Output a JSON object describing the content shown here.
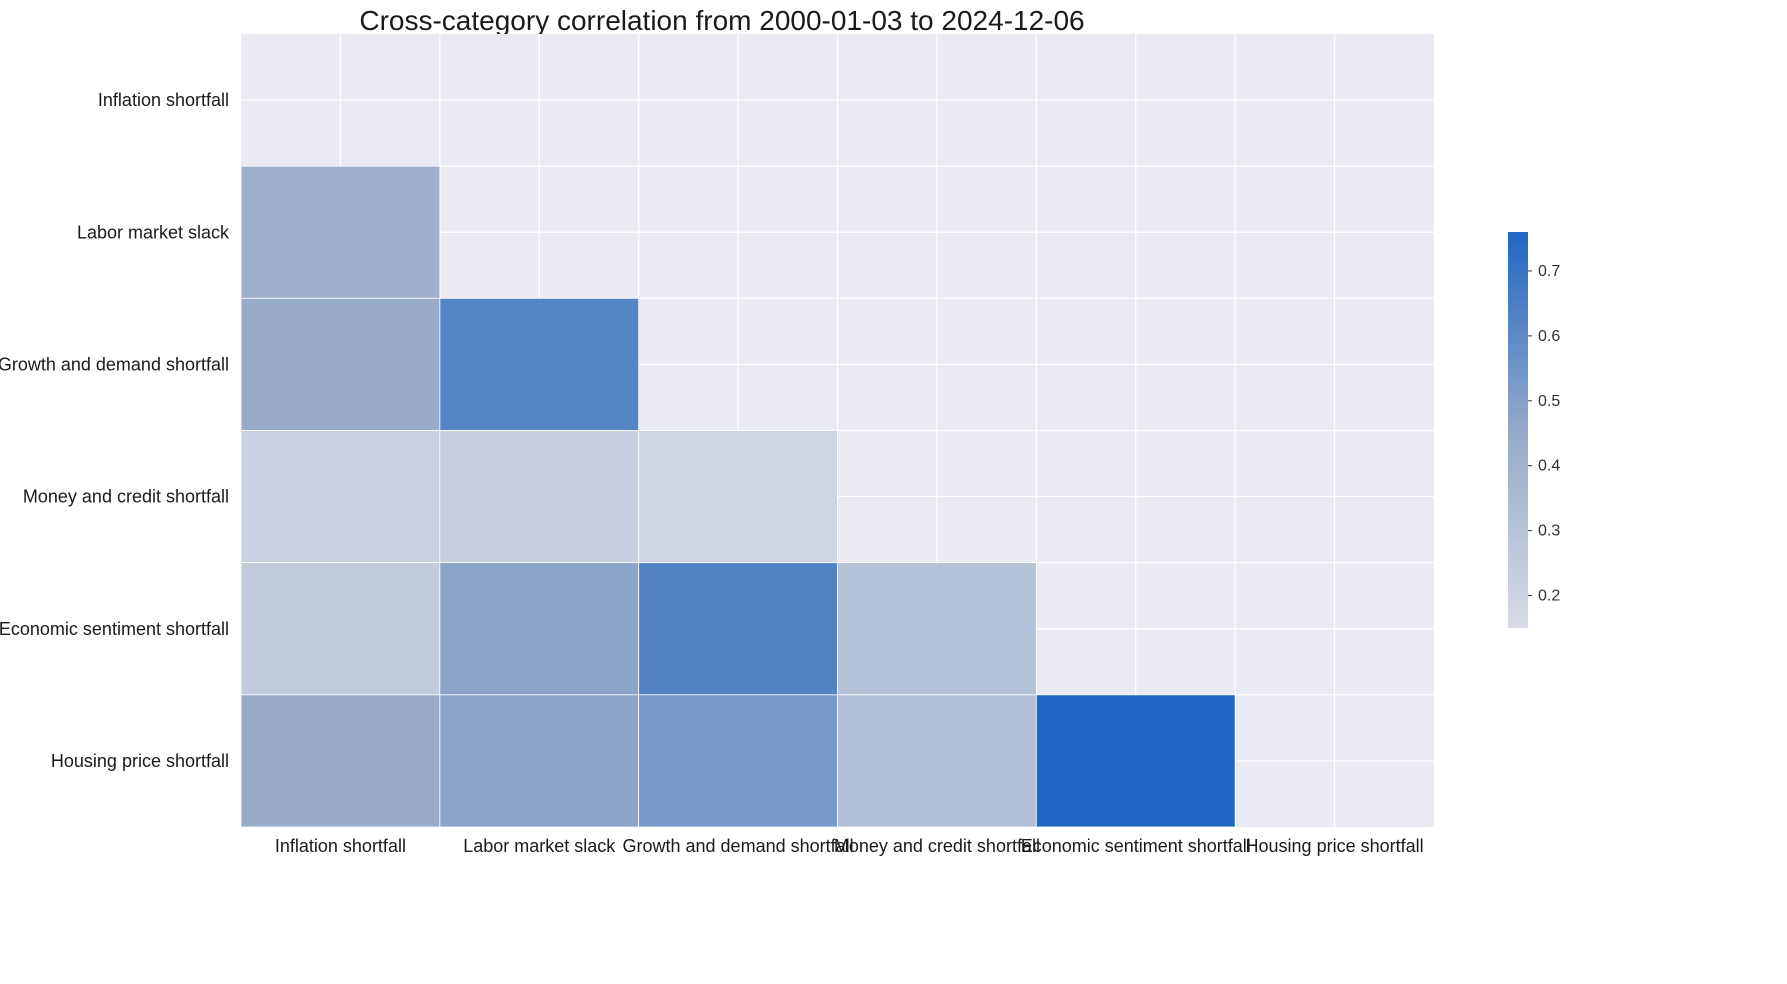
{
  "chart_data": {
    "type": "heatmap",
    "title": "Cross-category correlation from 2000-01-03 to 2024-12-06",
    "xlabel": "",
    "ylabel": "",
    "categories": [
      "Inflation shortfall",
      "Labor market slack",
      "Growth and demand shortfall",
      "Money and credit shortfall",
      "Economic sentiment shortfall",
      "Housing price shortfall"
    ],
    "mask": "upper triangle incl. diagonal",
    "grid": true,
    "values": [
      [
        null,
        null,
        null,
        null,
        null,
        null
      ],
      [
        0.42,
        null,
        null,
        null,
        null,
        null
      ],
      [
        0.44,
        0.62,
        null,
        null,
        null,
        null
      ],
      [
        0.22,
        0.23,
        0.19,
        null,
        null,
        null
      ],
      [
        0.25,
        0.48,
        0.63,
        0.31,
        null,
        null
      ],
      [
        0.44,
        0.48,
        0.53,
        0.32,
        0.76,
        null
      ]
    ],
    "colorbar": {
      "vmin": 0.15,
      "vmax": 0.76,
      "ticks": [
        "0.2",
        "0.3",
        "0.4",
        "0.5",
        "0.6",
        "0.7"
      ],
      "placement": "right"
    }
  },
  "colors": {
    "background": "#eaeaf2",
    "grid": "#ffffff",
    "low": "#d8dbe5",
    "mid": "#96a9ca",
    "high": "#1f67c2"
  }
}
